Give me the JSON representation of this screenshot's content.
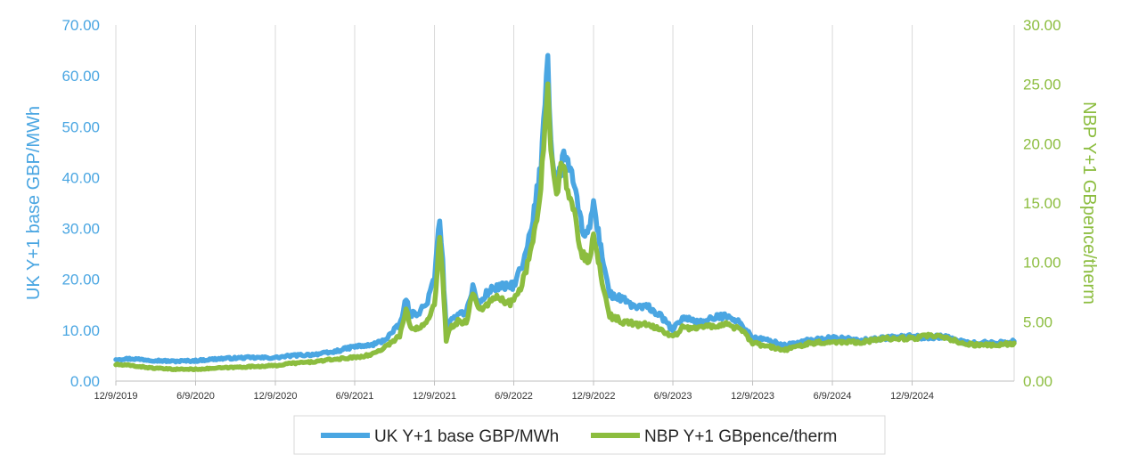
{
  "colors": {
    "left_axis": "#4aa6e2",
    "right_axis": "#8cbd3f",
    "grid": "#d9d9d9",
    "axis": "#bfbfbf"
  },
  "chart_data": {
    "type": "line",
    "x_ticks": [
      "12/9/2019",
      "6/9/2020",
      "12/9/2020",
      "6/9/2021",
      "12/9/2021",
      "6/9/2022",
      "12/9/2022",
      "6/9/2023",
      "12/9/2023",
      "6/9/2024",
      "12/9/2024"
    ],
    "x_range": [
      "2019-12-09",
      "2025-07-31"
    ],
    "y_left": {
      "label": "UK Y+1 base GBP/MWh",
      "ylim": [
        0,
        70
      ],
      "ticks": [
        "0.00",
        "10.00",
        "20.00",
        "30.00",
        "40.00",
        "50.00",
        "60.00",
        "70.00"
      ]
    },
    "y_right": {
      "label": "NBP Y+1 GBpence/therm",
      "ylim": [
        0,
        30
      ],
      "ticks": [
        "0.00",
        "5.00",
        "10.00",
        "15.00",
        "20.00",
        "25.00",
        "30.00"
      ]
    },
    "grid": "vertical",
    "legend": "bottom",
    "series": [
      {
        "name": "UK Y+1 base GBP/MWh",
        "axis": "left",
        "color": "#4aa6e2",
        "points": [
          [
            "2019-12-09",
            4.3
          ],
          [
            "2020-01-15",
            4.4
          ],
          [
            "2020-03-01",
            4.1
          ],
          [
            "2020-04-15",
            3.9
          ],
          [
            "2020-06-09",
            4.0
          ],
          [
            "2020-08-01",
            4.4
          ],
          [
            "2020-10-01",
            4.6
          ],
          [
            "2020-12-09",
            4.6
          ],
          [
            "2021-01-15",
            5.0
          ],
          [
            "2021-03-01",
            5.2
          ],
          [
            "2021-04-15",
            5.6
          ],
          [
            "2021-06-09",
            6.8
          ],
          [
            "2021-07-15",
            7.0
          ],
          [
            "2021-08-15",
            8.0
          ],
          [
            "2021-09-20",
            11.0
          ],
          [
            "2021-10-05",
            16.0
          ],
          [
            "2021-10-15",
            13.0
          ],
          [
            "2021-11-01",
            13.5
          ],
          [
            "2021-11-20",
            15.0
          ],
          [
            "2021-12-09",
            20.0
          ],
          [
            "2021-12-21",
            32.5
          ],
          [
            "2021-12-28",
            23.0
          ],
          [
            "2022-01-05",
            10.0
          ],
          [
            "2022-01-15",
            11.5
          ],
          [
            "2022-02-01",
            13.5
          ],
          [
            "2022-02-20",
            13.5
          ],
          [
            "2022-03-07",
            18.5
          ],
          [
            "2022-03-20",
            15.0
          ],
          [
            "2022-04-10",
            17.5
          ],
          [
            "2022-05-01",
            18.5
          ],
          [
            "2022-06-01",
            18.5
          ],
          [
            "2022-06-09",
            19.0
          ],
          [
            "2022-07-01",
            23.0
          ],
          [
            "2022-07-20",
            30.0
          ],
          [
            "2022-08-10",
            42.0
          ],
          [
            "2022-08-26",
            65.0
          ],
          [
            "2022-09-02",
            47.0
          ],
          [
            "2022-09-15",
            38.0
          ],
          [
            "2022-09-25",
            42.0
          ],
          [
            "2022-10-05",
            45.0
          ],
          [
            "2022-10-20",
            40.0
          ],
          [
            "2022-11-10",
            31.0
          ],
          [
            "2022-11-25",
            28.0
          ],
          [
            "2022-12-09",
            35.0
          ],
          [
            "2022-12-20",
            29.0
          ],
          [
            "2023-01-15",
            17.0
          ],
          [
            "2023-02-15",
            16.0
          ],
          [
            "2023-03-15",
            14.5
          ],
          [
            "2023-04-15",
            14.5
          ],
          [
            "2023-05-15",
            12.5
          ],
          [
            "2023-06-09",
            10.0
          ],
          [
            "2023-07-01",
            12.5
          ],
          [
            "2023-08-15",
            11.5
          ],
          [
            "2023-09-15",
            12.5
          ],
          [
            "2023-10-15",
            13.0
          ],
          [
            "2023-11-15",
            11.0
          ],
          [
            "2023-12-09",
            8.5
          ],
          [
            "2024-01-15",
            8.0
          ],
          [
            "2024-02-20",
            7.0
          ],
          [
            "2024-04-15",
            8.0
          ],
          [
            "2024-06-09",
            8.5
          ],
          [
            "2024-08-15",
            8.0
          ],
          [
            "2024-10-15",
            8.5
          ],
          [
            "2024-12-09",
            8.8
          ],
          [
            "2025-01-15",
            8.5
          ],
          [
            "2025-02-15",
            8.8
          ],
          [
            "2025-04-15",
            7.5
          ],
          [
            "2025-06-15",
            7.5
          ],
          [
            "2025-07-31",
            7.8
          ]
        ]
      },
      {
        "name": "NBP Y+1 GBpence/therm",
        "axis": "right",
        "color": "#8cbd3f",
        "points": [
          [
            "2019-12-09",
            1.4
          ],
          [
            "2020-01-15",
            1.3
          ],
          [
            "2020-03-01",
            1.1
          ],
          [
            "2020-04-15",
            1.0
          ],
          [
            "2020-06-09",
            1.0
          ],
          [
            "2020-08-01",
            1.1
          ],
          [
            "2020-10-01",
            1.2
          ],
          [
            "2020-12-09",
            1.3
          ],
          [
            "2021-01-15",
            1.5
          ],
          [
            "2021-03-01",
            1.6
          ],
          [
            "2021-04-15",
            1.8
          ],
          [
            "2021-06-09",
            2.0
          ],
          [
            "2021-07-15",
            2.2
          ],
          [
            "2021-08-15",
            2.8
          ],
          [
            "2021-09-20",
            3.8
          ],
          [
            "2021-10-05",
            6.0
          ],
          [
            "2021-10-15",
            4.5
          ],
          [
            "2021-11-01",
            4.5
          ],
          [
            "2021-11-20",
            5.0
          ],
          [
            "2021-12-09",
            6.5
          ],
          [
            "2021-12-21",
            12.0
          ],
          [
            "2021-12-28",
            8.5
          ],
          [
            "2022-01-05",
            3.5
          ],
          [
            "2022-01-15",
            4.5
          ],
          [
            "2022-02-01",
            5.0
          ],
          [
            "2022-02-20",
            5.0
          ],
          [
            "2022-03-07",
            7.5
          ],
          [
            "2022-03-20",
            6.0
          ],
          [
            "2022-04-10",
            6.5
          ],
          [
            "2022-05-01",
            7.0
          ],
          [
            "2022-06-01",
            6.5
          ],
          [
            "2022-06-09",
            6.8
          ],
          [
            "2022-07-01",
            8.5
          ],
          [
            "2022-07-20",
            11.0
          ],
          [
            "2022-08-10",
            16.0
          ],
          [
            "2022-08-26",
            26.0
          ],
          [
            "2022-09-02",
            20.0
          ],
          [
            "2022-09-15",
            16.0
          ],
          [
            "2022-09-25",
            18.0
          ],
          [
            "2022-10-05",
            17.0
          ],
          [
            "2022-10-20",
            15.0
          ],
          [
            "2022-11-10",
            11.0
          ],
          [
            "2022-11-25",
            10.0
          ],
          [
            "2022-12-09",
            12.0
          ],
          [
            "2022-12-20",
            10.0
          ],
          [
            "2023-01-15",
            5.5
          ],
          [
            "2023-02-15",
            5.0
          ],
          [
            "2023-03-15",
            4.8
          ],
          [
            "2023-04-15",
            4.7
          ],
          [
            "2023-05-15",
            4.3
          ],
          [
            "2023-06-09",
            3.7
          ],
          [
            "2023-07-01",
            4.5
          ],
          [
            "2023-08-15",
            4.5
          ],
          [
            "2023-09-15",
            4.7
          ],
          [
            "2023-10-15",
            4.8
          ],
          [
            "2023-11-15",
            4.2
          ],
          [
            "2023-12-09",
            3.2
          ],
          [
            "2024-01-15",
            2.9
          ],
          [
            "2024-02-20",
            2.6
          ],
          [
            "2024-04-15",
            3.2
          ],
          [
            "2024-06-09",
            3.3
          ],
          [
            "2024-08-15",
            3.3
          ],
          [
            "2024-10-15",
            3.6
          ],
          [
            "2024-12-09",
            3.6
          ],
          [
            "2025-01-15",
            3.8
          ],
          [
            "2025-02-15",
            3.7
          ],
          [
            "2025-04-15",
            3.1
          ],
          [
            "2025-06-15",
            3.0
          ],
          [
            "2025-07-31",
            3.2
          ]
        ]
      }
    ]
  }
}
